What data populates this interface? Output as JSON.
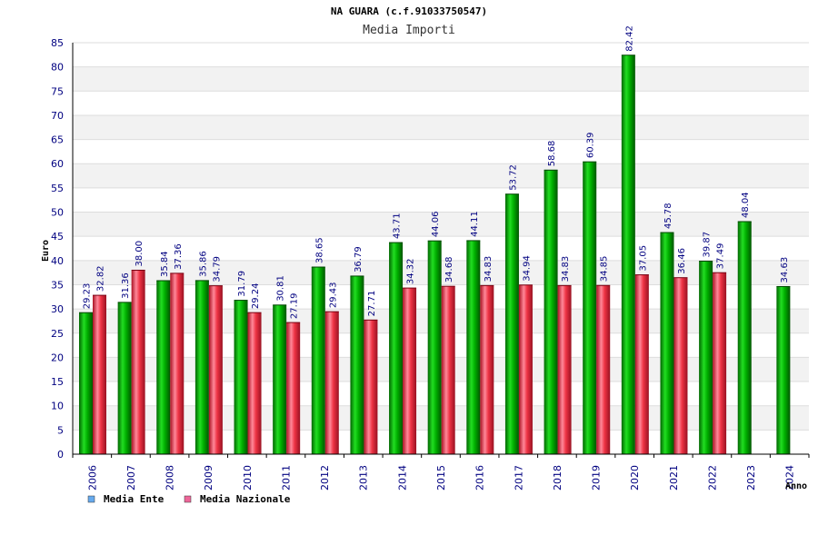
{
  "chart_data": {
    "type": "bar",
    "title": "NA GUARA (c.f.91033750547)",
    "subtitle": "Media Importi",
    "xlabel": "Anno",
    "ylabel": "Euro",
    "ylim": [
      0,
      85
    ],
    "yticks": [
      "0",
      "5",
      "10",
      "15",
      "20",
      "25",
      "30",
      "35",
      "40",
      "45",
      "50",
      "55",
      "60",
      "65",
      "70",
      "75",
      "80",
      "85"
    ],
    "categories": [
      "2006",
      "2007",
      "2008",
      "2009",
      "2010",
      "2011",
      "2012",
      "2013",
      "2014",
      "2015",
      "2016",
      "2017",
      "2018",
      "2019",
      "2020",
      "2021",
      "2022",
      "2023",
      "2024"
    ],
    "series": [
      {
        "name": "Media Ente",
        "color": "#00aa00",
        "values": [
          29.23,
          31.36,
          35.84,
          35.86,
          31.79,
          30.81,
          38.65,
          36.79,
          43.71,
          44.06,
          44.11,
          53.72,
          58.68,
          60.39,
          82.42,
          45.78,
          39.87,
          48.04,
          null
        ],
        "labels": [
          "29.23",
          "31.36",
          "35.84",
          "35.86",
          "31.79",
          "30.81",
          "38.65",
          "36.79",
          "43.71",
          "44.06",
          "44.11",
          "53.72",
          "58.68",
          "60.39",
          "82.42",
          "45.78",
          "39.87",
          "48.04",
          ""
        ]
      },
      {
        "name": "Media Nazionale",
        "color": "#dd2233",
        "values": [
          32.82,
          38.0,
          37.36,
          34.79,
          29.24,
          27.19,
          29.43,
          27.71,
          34.32,
          34.68,
          34.83,
          34.94,
          34.83,
          34.85,
          37.05,
          36.46,
          37.49,
          null,
          null
        ],
        "labels": [
          "32.82",
          "38.00",
          "37.36",
          "34.79",
          "29.24",
          "27.19",
          "29.43",
          "27.71",
          "34.32",
          "34.68",
          "34.83",
          "34.94",
          "34.83",
          "34.85",
          "37.05",
          "36.46",
          "37.49",
          "",
          ""
        ]
      },
      {
        "name": "",
        "color": "#00aa00",
        "values": [
          null,
          null,
          null,
          null,
          null,
          null,
          null,
          null,
          null,
          null,
          null,
          null,
          null,
          null,
          null,
          null,
          null,
          null,
          34.63
        ],
        "labels": [
          "",
          "",
          "",
          "",
          "",
          "",
          "",
          "",
          "",
          "",
          "",
          "",
          "",
          "",
          "",
          "",
          "",
          "",
          "34.63"
        ]
      }
    ],
    "legend": [
      {
        "name": "Media Ente",
        "color": "#66aaee"
      },
      {
        "name": "Media Nazionale",
        "color": "#ee6699"
      }
    ],
    "legend_position": "bottom-left",
    "grid": true
  }
}
